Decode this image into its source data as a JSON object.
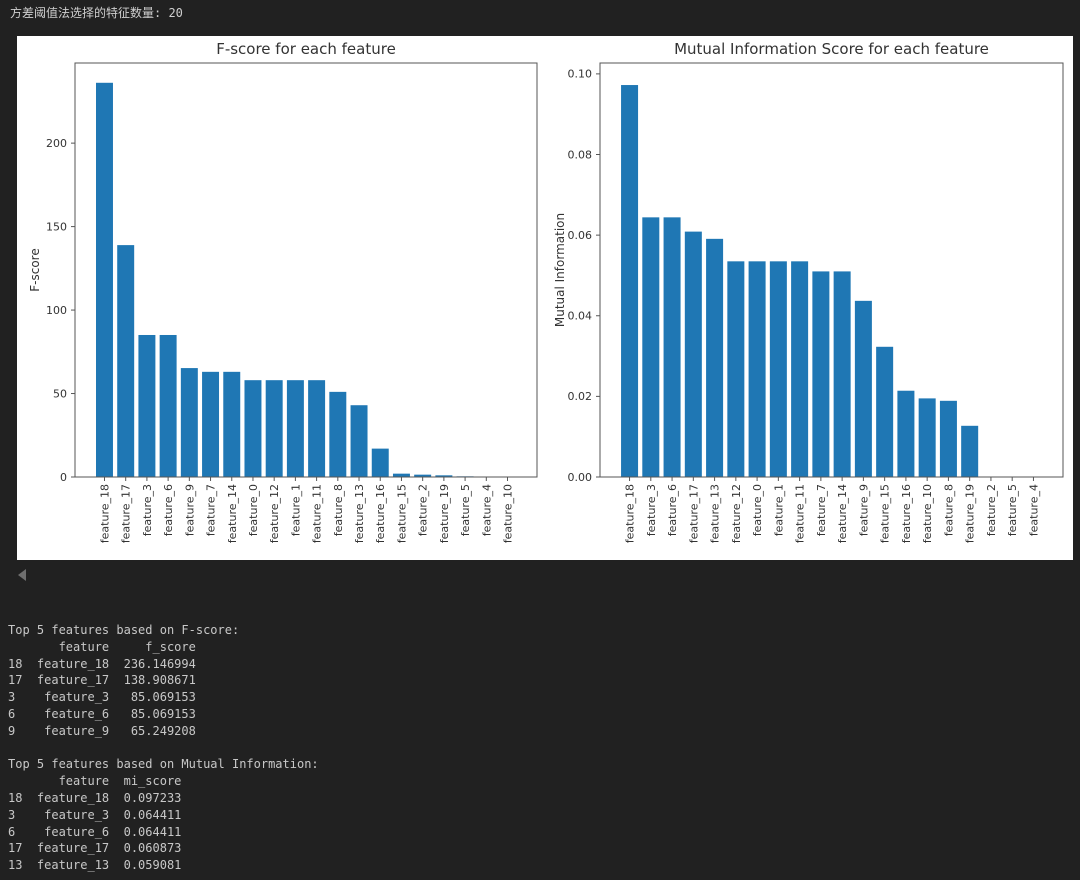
{
  "colors": {
    "page_bg": "#212121",
    "console_text": "#c8c8c8",
    "figure_bg": "#ffffff",
    "bar": "#1f77b4",
    "axis": "#555555",
    "chart_text": "#333333",
    "collapse_icon": "#6f6f6f"
  },
  "top_console": {
    "text": "方差阈值法选择的特征数量: 20"
  },
  "chart_data": [
    {
      "type": "bar",
      "title": "F-score for each feature",
      "xlabel": "",
      "ylabel": "F-score",
      "categories": [
        "feature_18",
        "feature_17",
        "feature_3",
        "feature_6",
        "feature_9",
        "feature_7",
        "feature_14",
        "feature_0",
        "feature_12",
        "feature_1",
        "feature_11",
        "feature_8",
        "feature_13",
        "feature_16",
        "feature_15",
        "feature_2",
        "feature_19",
        "feature_5",
        "feature_4",
        "feature_10"
      ],
      "values": [
        236.146994,
        138.908671,
        85.069153,
        85.069153,
        65.249208,
        63,
        63,
        58,
        58,
        58,
        58,
        51,
        43,
        17,
        2.0,
        1.4,
        1.0,
        0.4,
        0.2,
        0.1
      ],
      "yticks": [
        0,
        50,
        100,
        150,
        200
      ],
      "ytick_labels": [
        "0",
        "50",
        "100",
        "150",
        "200"
      ],
      "ylim": [
        0,
        248
      ],
      "grid": false,
      "legend": null,
      "bar_color": "#1f77b4"
    },
    {
      "type": "bar",
      "title": "Mutual Information Score for each feature",
      "xlabel": "",
      "ylabel": "Mutual Information",
      "categories": [
        "feature_18",
        "feature_3",
        "feature_6",
        "feature_17",
        "feature_13",
        "feature_12",
        "feature_0",
        "feature_1",
        "feature_11",
        "feature_7",
        "feature_14",
        "feature_9",
        "feature_15",
        "feature_16",
        "feature_10",
        "feature_8",
        "feature_19",
        "feature_2",
        "feature_5",
        "feature_4"
      ],
      "values": [
        0.097233,
        0.064411,
        0.064411,
        0.060873,
        0.059081,
        0.0535,
        0.0535,
        0.0535,
        0.0535,
        0.051,
        0.051,
        0.0437,
        0.0323,
        0.0214,
        0.0195,
        0.0189,
        0.0127,
        0,
        0,
        0
      ],
      "yticks": [
        0,
        0.02,
        0.04,
        0.06,
        0.08,
        0.1
      ],
      "ytick_labels": [
        "0.00",
        "0.02",
        "0.04",
        "0.06",
        "0.08",
        "0.10"
      ],
      "ylim": [
        0,
        0.1027
      ],
      "grid": false,
      "legend": null,
      "bar_color": "#1f77b4"
    }
  ],
  "bottom_console": {
    "lines": [
      "Top 5 features based on F-score:",
      "       feature     f_score",
      "18  feature_18  236.146994",
      "17  feature_17  138.908671",
      "3    feature_3   85.069153",
      "6    feature_6   85.069153",
      "9    feature_9   65.249208",
      "",
      "Top 5 features based on Mutual Information:",
      "       feature  mi_score",
      "18  feature_18  0.097233",
      "3    feature_3  0.064411",
      "6    feature_6  0.064411",
      "17  feature_17  0.060873",
      "13  feature_13  0.059081"
    ]
  }
}
